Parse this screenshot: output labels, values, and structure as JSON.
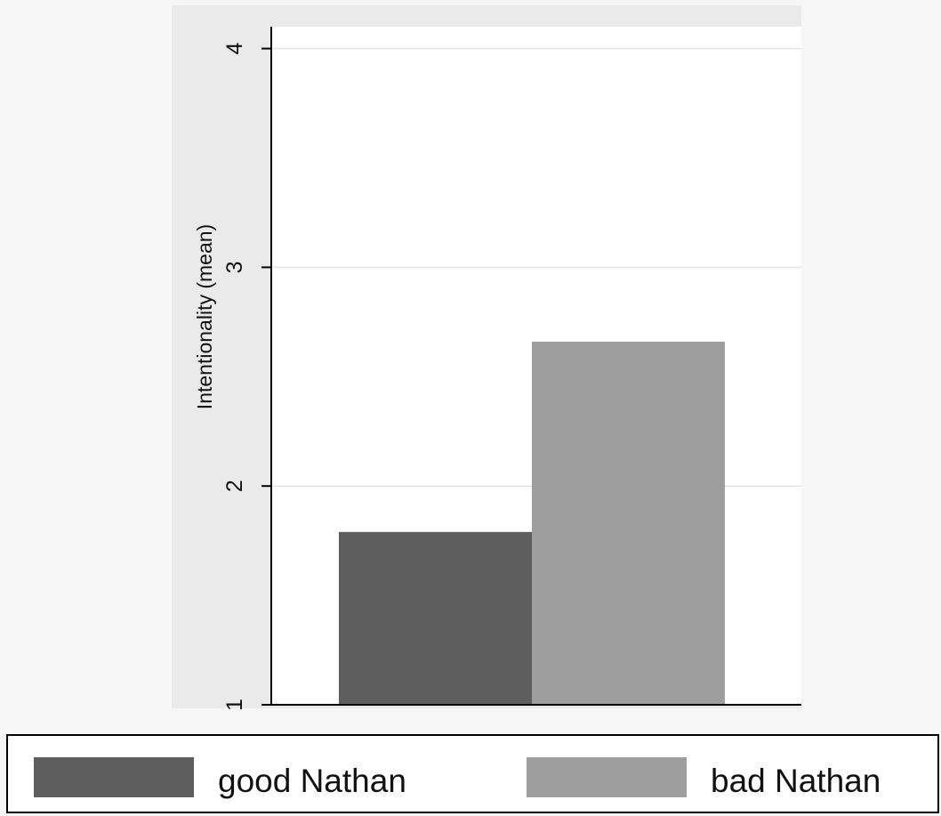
{
  "chart_data": {
    "type": "bar",
    "ylabel": "Intentionality (mean)",
    "xlabel": "",
    "ylim": [
      1,
      4.1
    ],
    "yticks": [
      1,
      2,
      3,
      4
    ],
    "grid": true,
    "legend_position": "bottom",
    "series": [
      {
        "name": "good Nathan",
        "values": [
          1.79
        ],
        "color": "#5e5e5e"
      },
      {
        "name": "bad Nathan",
        "values": [
          2.66
        ],
        "color": "#9e9e9e"
      }
    ]
  }
}
